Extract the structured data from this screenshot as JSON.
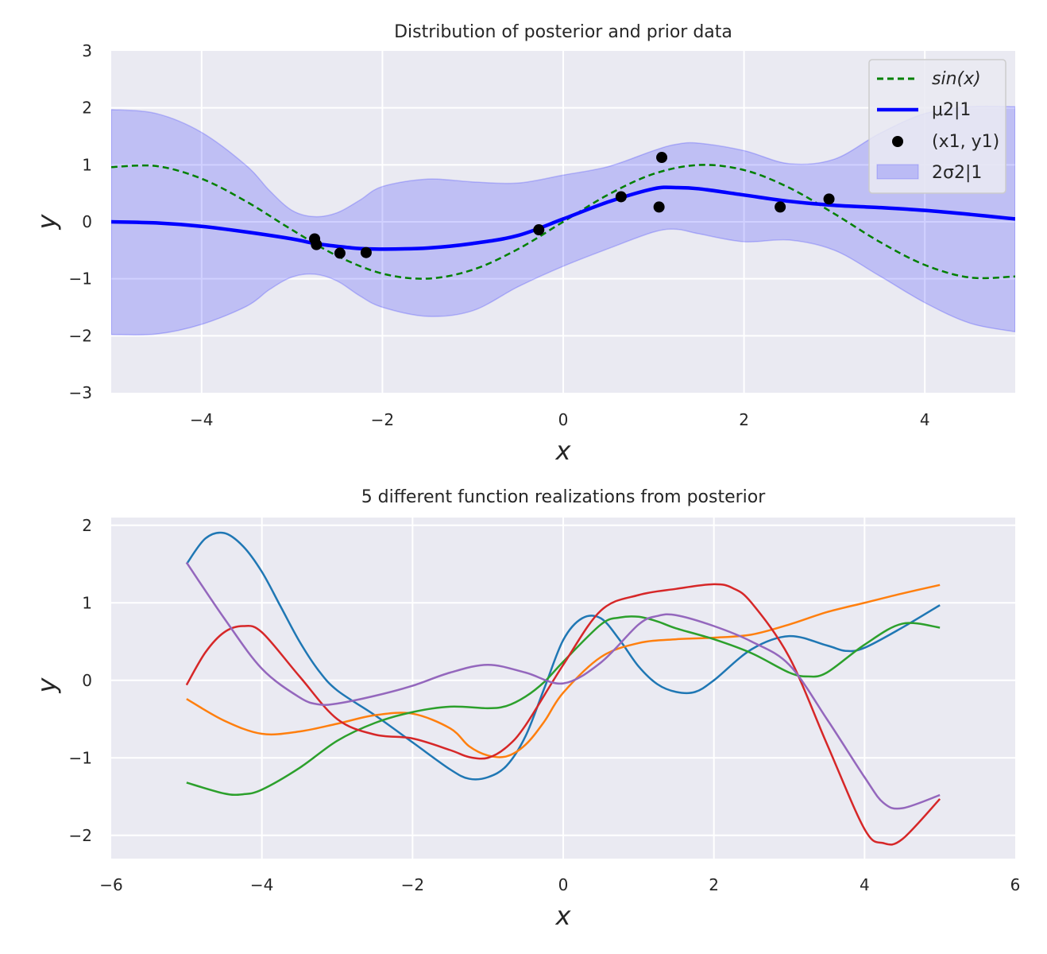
{
  "chart_data": [
    {
      "type": "line",
      "title": "Distribution of posterior and prior data",
      "xlabel": "x",
      "ylabel": "y",
      "xlim": [
        -5,
        5
      ],
      "ylim": [
        -3,
        3
      ],
      "xticks": [
        -4,
        -2,
        0,
        2,
        4
      ],
      "xtick_labels": [
        "−4",
        "−2",
        "0",
        "2",
        "4"
      ],
      "yticks": [
        -3,
        -2,
        -1,
        0,
        1,
        2,
        3
      ],
      "ytick_labels": [
        "−3",
        "−2",
        "−1",
        "0",
        "1",
        "2",
        "3"
      ],
      "grid": true,
      "legend_position": "top-right",
      "legend": {
        "sin_label": "sin(x)",
        "mu_label": "μ2|1",
        "points_label": "(x1, y1)",
        "band_label": "2σ2|1"
      },
      "series": [
        {
          "name": "sin(x)",
          "style": "dashed",
          "color": "#008000",
          "x": [
            -5,
            -4.5,
            -4,
            -3.5,
            -3,
            -2.5,
            -2,
            -1.5,
            -1,
            -0.5,
            0,
            0.5,
            1,
            1.5,
            2,
            2.5,
            3,
            3.5,
            4,
            4.5,
            5
          ],
          "y": [
            0.959,
            0.978,
            0.757,
            0.351,
            -0.141,
            -0.598,
            -0.909,
            -0.997,
            -0.841,
            -0.479,
            0,
            0.479,
            0.841,
            0.997,
            0.909,
            0.598,
            0.141,
            -0.351,
            -0.757,
            -0.978,
            -0.959
          ]
        },
        {
          "name": "μ2|1",
          "style": "solid",
          "color": "#0000ff",
          "x": [
            -5,
            -4.5,
            -4,
            -3.5,
            -3,
            -2.75,
            -2.5,
            -2.25,
            -2,
            -1.5,
            -1,
            -0.5,
            0,
            0.5,
            1,
            1.25,
            1.5,
            2,
            2.5,
            3,
            3.5,
            4,
            4.5,
            5
          ],
          "y": [
            0,
            -0.02,
            -0.08,
            -0.18,
            -0.3,
            -0.38,
            -0.43,
            -0.47,
            -0.48,
            -0.46,
            -0.38,
            -0.24,
            0.05,
            0.35,
            0.58,
            0.6,
            0.58,
            0.47,
            0.36,
            0.29,
            0.25,
            0.2,
            0.13,
            0.05
          ]
        },
        {
          "name": "(x1, y1)",
          "style": "points",
          "color": "#000000",
          "x": [
            -2.75,
            -2.73,
            -2.47,
            -2.18,
            -0.27,
            0.64,
            1.06,
            1.09,
            2.4,
            2.94
          ],
          "y": [
            -0.3,
            -0.4,
            -0.55,
            -0.54,
            -0.14,
            0.44,
            0.26,
            1.13,
            0.26,
            0.4
          ]
        }
      ],
      "band": {
        "name": "2σ2|1",
        "color": "#0000ff",
        "x": [
          -5,
          -4.5,
          -4,
          -3.5,
          -3.25,
          -3,
          -2.75,
          -2.5,
          -2.25,
          -2,
          -1.5,
          -1,
          -0.5,
          0,
          0.5,
          1,
          1.25,
          1.5,
          2,
          2.5,
          3,
          3.5,
          4,
          4.5,
          5
        ],
        "upper": [
          1.97,
          1.9,
          1.57,
          0.98,
          0.55,
          0.2,
          0.09,
          0.16,
          0.38,
          0.62,
          0.75,
          0.7,
          0.68,
          0.82,
          0.97,
          1.25,
          1.36,
          1.38,
          1.25,
          1.02,
          1.1,
          1.55,
          1.9,
          2.02,
          2.02
        ],
        "lower": [
          -1.98,
          -1.97,
          -1.8,
          -1.48,
          -1.19,
          -0.97,
          -0.92,
          -1.04,
          -1.3,
          -1.5,
          -1.66,
          -1.56,
          -1.14,
          -0.78,
          -0.47,
          -0.18,
          -0.13,
          -0.21,
          -0.35,
          -0.32,
          -0.5,
          -0.95,
          -1.42,
          -1.78,
          -1.93
        ]
      }
    },
    {
      "type": "line",
      "title": "5 different function realizations from posterior",
      "xlabel": "x",
      "ylabel": "y",
      "xlim": [
        -6,
        6
      ],
      "ylim": [
        -2.3,
        2.1
      ],
      "xticks": [
        -6,
        -4,
        -2,
        0,
        2,
        4,
        6
      ],
      "xtick_labels": [
        "−6",
        "−4",
        "−2",
        "0",
        "2",
        "4",
        "6"
      ],
      "yticks": [
        -2,
        -1,
        0,
        1,
        2
      ],
      "ytick_labels": [
        "−2",
        "−1",
        "0",
        "1",
        "2"
      ],
      "grid": true,
      "series": [
        {
          "color": "#1f77b4",
          "x": [
            -5,
            -4.75,
            -4.5,
            -4.25,
            -4,
            -3.75,
            -3.5,
            -3.25,
            -3,
            -2.5,
            -2,
            -1.5,
            -1.25,
            -1,
            -0.75,
            -0.5,
            -0.25,
            0,
            0.25,
            0.5,
            0.75,
            1,
            1.25,
            1.5,
            1.75,
            2,
            2.5,
            3,
            3.5,
            3.75,
            4,
            4.5,
            5
          ],
          "y": [
            1.5,
            1.83,
            1.9,
            1.73,
            1.4,
            0.95,
            0.5,
            0.13,
            -0.13,
            -0.45,
            -0.8,
            -1.15,
            -1.27,
            -1.25,
            -1.1,
            -0.72,
            -0.1,
            0.52,
            0.8,
            0.8,
            0.52,
            0.18,
            -0.05,
            -0.15,
            -0.15,
            0.0,
            0.4,
            0.57,
            0.45,
            0.38,
            0.42,
            0.68,
            0.97
          ]
        },
        {
          "color": "#ff7f0e",
          "x": [
            -5,
            -4.5,
            -4,
            -3.5,
            -3,
            -2.5,
            -2,
            -1.5,
            -1.25,
            -1,
            -0.75,
            -0.5,
            -0.25,
            0,
            0.5,
            1,
            1.5,
            2,
            2.5,
            3,
            3.5,
            4,
            4.5,
            5
          ],
          "y": [
            -0.24,
            -0.52,
            -0.69,
            -0.66,
            -0.56,
            -0.45,
            -0.43,
            -0.62,
            -0.85,
            -0.97,
            -0.98,
            -0.83,
            -0.53,
            -0.16,
            0.3,
            0.48,
            0.53,
            0.55,
            0.59,
            0.72,
            0.88,
            1.0,
            1.12,
            1.23
          ]
        },
        {
          "color": "#2ca02c",
          "x": [
            -5,
            -4.5,
            -4.25,
            -4,
            -3.5,
            -3,
            -2.5,
            -2,
            -1.5,
            -1,
            -0.75,
            -0.5,
            -0.25,
            0,
            0.5,
            0.75,
            1,
            1.25,
            1.5,
            2,
            2.5,
            3,
            3.25,
            3.5,
            4,
            4.5,
            5
          ],
          "y": [
            -1.32,
            -1.46,
            -1.47,
            -1.41,
            -1.13,
            -0.78,
            -0.55,
            -0.41,
            -0.34,
            -0.36,
            -0.33,
            -0.21,
            -0.02,
            0.24,
            0.72,
            0.81,
            0.82,
            0.76,
            0.67,
            0.53,
            0.35,
            0.1,
            0.05,
            0.1,
            0.46,
            0.73,
            0.68
          ]
        },
        {
          "color": "#d62728",
          "x": [
            -5,
            -4.75,
            -4.5,
            -4.25,
            -4,
            -3.5,
            -3,
            -2.5,
            -2,
            -1.5,
            -1.25,
            -1,
            -0.75,
            -0.5,
            0,
            0.5,
            1,
            1.5,
            2,
            2.25,
            2.5,
            3,
            3.5,
            4,
            4.25,
            4.5,
            5
          ],
          "y": [
            -0.06,
            0.36,
            0.62,
            0.7,
            0.62,
            0.05,
            -0.5,
            -0.7,
            -0.75,
            -0.9,
            -0.99,
            -1.0,
            -0.86,
            -0.58,
            0.2,
            0.9,
            1.1,
            1.18,
            1.24,
            1.19,
            1.0,
            0.3,
            -0.82,
            -1.92,
            -2.1,
            -2.05,
            -1.53
          ]
        },
        {
          "color": "#9467bd",
          "x": [
            -5,
            -4.5,
            -4,
            -3.5,
            -3.25,
            -3,
            -2.5,
            -2,
            -1.5,
            -1,
            -0.5,
            0,
            0.5,
            1,
            1.25,
            1.5,
            2,
            2.5,
            3,
            3.5,
            4,
            4.25,
            4.5,
            5
          ],
          "y": [
            1.52,
            0.8,
            0.15,
            -0.22,
            -0.31,
            -0.3,
            -0.2,
            -0.07,
            0.1,
            0.2,
            0.1,
            -0.04,
            0.23,
            0.72,
            0.83,
            0.84,
            0.7,
            0.5,
            0.2,
            -0.5,
            -1.25,
            -1.58,
            -1.65,
            -1.48
          ]
        }
      ]
    }
  ]
}
